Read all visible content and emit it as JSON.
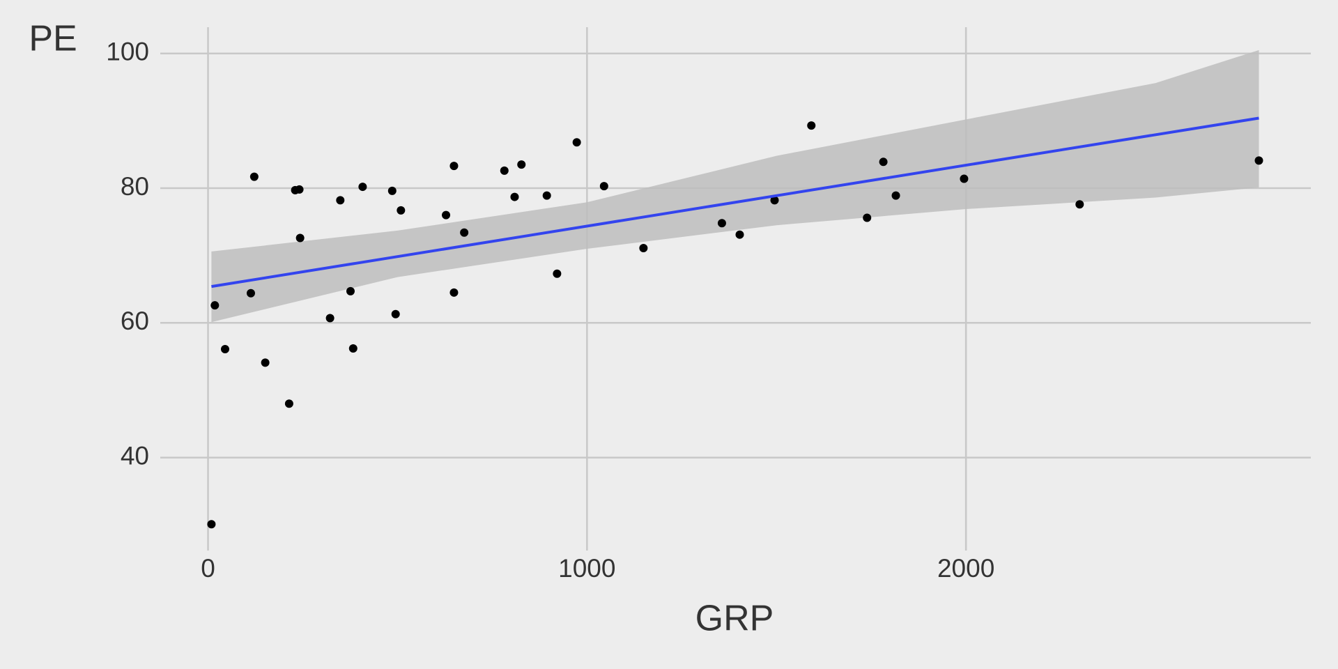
{
  "chart_data": {
    "type": "scatter",
    "x_label": "GRP",
    "y_label": "PE",
    "x": [
      9,
      18,
      45,
      113,
      122,
      151,
      214,
      230,
      241,
      243,
      322,
      349,
      376,
      383,
      408,
      486,
      495,
      509,
      628,
      649,
      649,
      676,
      782,
      809,
      827,
      894,
      921,
      973,
      1045,
      1149,
      1356,
      1403,
      1495,
      1592,
      1739,
      1782,
      1815,
      1995,
      2300,
      2773
    ],
    "values": [
      30.1,
      62.6,
      56.1,
      64.4,
      81.7,
      54.1,
      48.0,
      79.7,
      79.8,
      72.6,
      60.7,
      78.2,
      64.7,
      56.2,
      80.2,
      79.6,
      61.3,
      76.7,
      76.0,
      83.3,
      64.5,
      73.4,
      82.6,
      78.7,
      83.5,
      78.9,
      67.3,
      86.8,
      80.3,
      71.1,
      74.8,
      73.1,
      78.2,
      89.3,
      75.6,
      83.9,
      78.9,
      81.4,
      77.6,
      84.1
    ],
    "color": "#000000",
    "fit": {
      "x": [
        9,
        2773
      ],
      "y": [
        65.4,
        90.4
      ],
      "color": "#3344ee"
    },
    "band": {
      "x": [
        9,
        500,
        1000,
        1500,
        2000,
        2500,
        2773
      ],
      "lower": [
        60.1,
        66.8,
        71.0,
        74.5,
        76.9,
        78.6,
        80.1
      ],
      "upper": [
        70.6,
        73.7,
        77.9,
        84.8,
        90.2,
        95.6,
        100.5
      ],
      "color": "#bdbdbd"
    },
    "xlim": [
      -126,
      2910
    ],
    "ylim": [
      26.2,
      103.9
    ],
    "xticks": [
      0,
      1000,
      2000
    ],
    "yticks": [
      40,
      60,
      80,
      100
    ],
    "grid": true
  }
}
